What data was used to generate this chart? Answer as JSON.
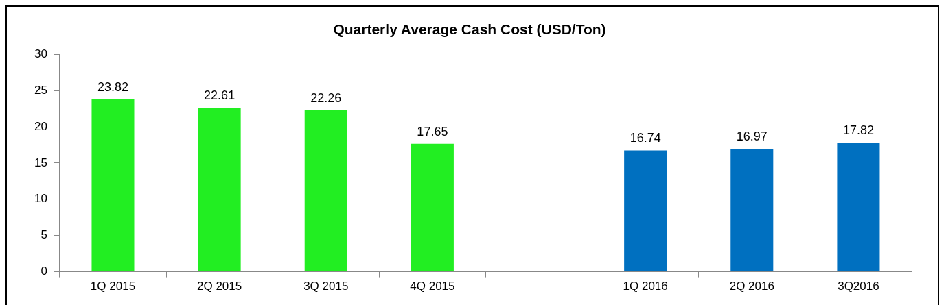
{
  "chart_data": {
    "type": "bar",
    "title": "Quarterly Average Cash Cost (USD/Ton)",
    "categories": [
      "1Q 2015",
      "2Q 2015",
      "3Q 2015",
      "4Q 2015",
      null,
      "1Q 2016",
      "2Q 2016",
      "3Q2016"
    ],
    "values": [
      23.82,
      22.61,
      22.26,
      17.65,
      null,
      16.74,
      16.97,
      17.82
    ],
    "colors": [
      "#22ee22",
      "#22ee22",
      "#22ee22",
      "#22ee22",
      "#22ee22",
      "#0070c0",
      "#0070c0",
      "#0070c0"
    ],
    "ylim": [
      0,
      30
    ],
    "yticks": [
      0,
      5,
      10,
      15,
      20,
      25,
      30
    ],
    "grid": false,
    "legend": false,
    "data_labels": true
  }
}
